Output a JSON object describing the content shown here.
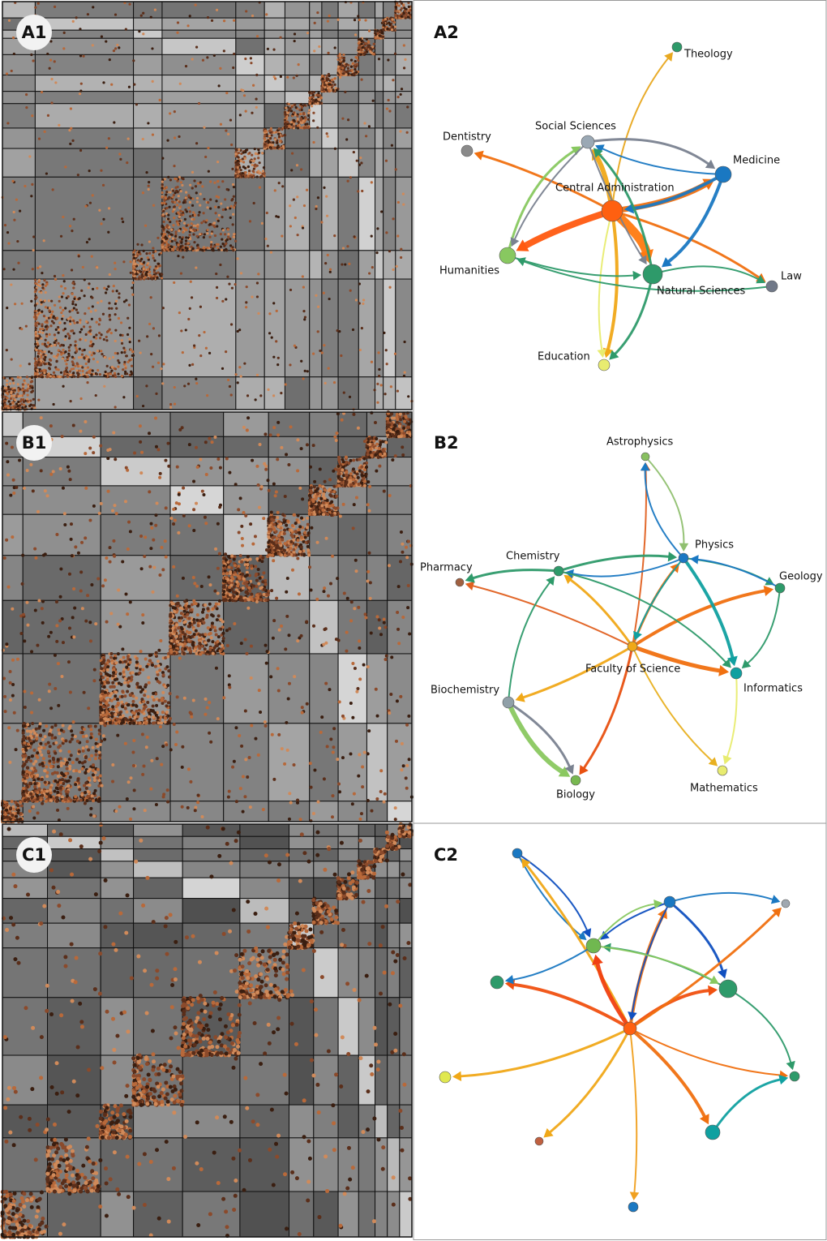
{
  "panels": [
    {
      "matrix_label": "A1",
      "network_label": "A2",
      "nodes": [
        "Theology",
        "Social Sciences",
        "Dentistry",
        "Medicine",
        "Central Administration",
        "Humanities",
        "Law",
        "Natural Sciences",
        "Education"
      ]
    },
    {
      "matrix_label": "B1",
      "network_label": "B2",
      "nodes": [
        "Astrophysics",
        "Physics",
        "Pharmacy",
        "Chemistry",
        "Geology",
        "Faculty of Science",
        "Informatics",
        "Biochemistry",
        "Mathematics",
        "Biology"
      ]
    },
    {
      "matrix_label": "C1",
      "network_label": "C2"
    }
  ]
}
